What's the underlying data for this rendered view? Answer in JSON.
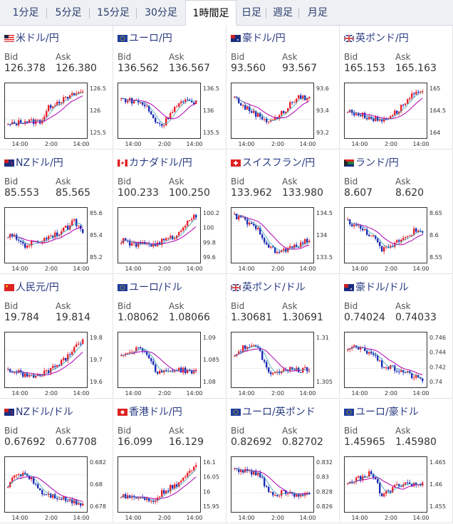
{
  "tabs": [
    {
      "label": "1分足",
      "active": false
    },
    {
      "label": "5分足",
      "active": false
    },
    {
      "label": "15分足",
      "active": false
    },
    {
      "label": "30分足",
      "active": false
    },
    {
      "label": "1時間足",
      "active": true
    },
    {
      "label": "日足",
      "active": false
    },
    {
      "label": "週足",
      "active": false
    },
    {
      "label": "月足",
      "active": false
    }
  ],
  "bid_label": "Bid",
  "ask_label": "Ask",
  "x_ticks": [
    "14:00",
    "2:00",
    "14:00"
  ],
  "colors": {
    "up": "#e8202a",
    "down": "#1a2bb5",
    "ma_long": "#b000b0",
    "ma_short": "#3aa0b8",
    "title": "#2a3c84"
  },
  "pairs": [
    {
      "name": "米ドル/円",
      "flag": "us-jp",
      "bid": "126.378",
      "ask": "126.380",
      "chart_data": {
        "type": "candlestick",
        "y_ticks": [
          "126.5",
          "126",
          "125.5"
        ],
        "ylim": [
          125.15,
          126.65
        ],
        "trend": [
          0.2,
          0.25,
          0.3,
          0.28,
          0.3,
          0.6,
          0.7,
          0.75,
          0.85,
          0.9
        ]
      }
    },
    {
      "name": "ユーロ/円",
      "flag": "eu-jp",
      "bid": "136.562",
      "ask": "136.567",
      "chart_data": {
        "type": "candlestick",
        "y_ticks": [
          "136.5",
          "136",
          "135.5"
        ],
        "ylim": [
          135.4,
          136.9
        ],
        "trend": [
          0.75,
          0.72,
          0.7,
          0.6,
          0.3,
          0.2,
          0.5,
          0.65,
          0.7,
          0.7
        ]
      }
    },
    {
      "name": "豪ドル/円",
      "flag": "au-jp",
      "bid": "93.560",
      "ask": "93.567",
      "chart_data": {
        "type": "candlestick",
        "y_ticks": [
          "93.6",
          "93.4",
          "93.2"
        ],
        "ylim": [
          93.1,
          93.7
        ],
        "trend": [
          0.8,
          0.6,
          0.5,
          0.4,
          0.3,
          0.35,
          0.5,
          0.7,
          0.8,
          0.75
        ]
      }
    },
    {
      "name": "英ポンド/円",
      "flag": "gb-jp",
      "bid": "165.153",
      "ask": "165.163",
      "chart_data": {
        "type": "candlestick",
        "y_ticks": [
          "165",
          "164.5",
          "164"
        ],
        "ylim": [
          163.9,
          165.3
        ],
        "trend": [
          0.5,
          0.45,
          0.4,
          0.35,
          0.3,
          0.4,
          0.5,
          0.7,
          0.85,
          0.85
        ]
      }
    },
    {
      "name": "NZドル/円",
      "flag": "nz-jp",
      "bid": "85.553",
      "ask": "85.565",
      "chart_data": {
        "type": "candlestick",
        "y_ticks": [
          "85.6",
          "85.4",
          "85.2"
        ],
        "ylim": [
          85.15,
          85.75
        ],
        "trend": [
          0.5,
          0.45,
          0.3,
          0.35,
          0.4,
          0.5,
          0.55,
          0.65,
          0.8,
          0.6
        ]
      }
    },
    {
      "name": "カナダドル/円",
      "flag": "ca-jp",
      "bid": "100.233",
      "ask": "100.250",
      "chart_data": {
        "type": "candlestick",
        "y_ticks": [
          "100.2",
          "100",
          "99.8",
          "99.6"
        ],
        "ylim": [
          99.5,
          100.3
        ],
        "trend": [
          0.4,
          0.35,
          0.3,
          0.35,
          0.3,
          0.4,
          0.45,
          0.55,
          0.85,
          0.9
        ]
      }
    },
    {
      "name": "スイスフラン/円",
      "flag": "ch-jp",
      "bid": "133.962",
      "ask": "133.980",
      "chart_data": {
        "type": "candlestick",
        "y_ticks": [
          "134.5",
          "134",
          "133.5"
        ],
        "ylim": [
          133.4,
          134.7
        ],
        "trend": [
          0.9,
          0.85,
          0.7,
          0.6,
          0.3,
          0.15,
          0.2,
          0.25,
          0.35,
          0.4
        ]
      }
    },
    {
      "name": "ランド/円",
      "flag": "za-jp",
      "bid": "8.607",
      "ask": "8.620",
      "chart_data": {
        "type": "candlestick",
        "y_ticks": [
          "8.65",
          "8.6",
          "8.55"
        ],
        "ylim": [
          8.52,
          8.67
        ],
        "trend": [
          0.8,
          0.7,
          0.6,
          0.5,
          0.2,
          0.25,
          0.4,
          0.5,
          0.6,
          0.55
        ]
      }
    },
    {
      "name": "人民元/円",
      "flag": "cn-jp",
      "bid": "19.784",
      "ask": "19.814",
      "chart_data": {
        "type": "candlestick",
        "y_ticks": [
          "19.8",
          "19.7",
          "19.6"
        ],
        "ylim": [
          19.58,
          19.83
        ],
        "trend": [
          0.3,
          0.25,
          0.2,
          0.15,
          0.2,
          0.3,
          0.4,
          0.55,
          0.8,
          0.9
        ]
      }
    },
    {
      "name": "ユーロ/ドル",
      "flag": "eu-us",
      "bid": "1.08062",
      "ask": "1.08066",
      "chart_data": {
        "type": "candlestick",
        "y_ticks": [
          "1.09",
          "1.085",
          "1.08"
        ],
        "ylim": [
          1.076,
          1.093
        ],
        "trend": [
          0.6,
          0.7,
          0.75,
          0.7,
          0.3,
          0.25,
          0.3,
          0.3,
          0.28,
          0.25
        ]
      }
    },
    {
      "name": "英ポンド/ドル",
      "flag": "gb-us",
      "bid": "1.30681",
      "ask": "1.30691",
      "chart_data": {
        "type": "candlestick",
        "y_ticks": [
          "1.31",
          "1.305"
        ],
        "ylim": [
          1.302,
          1.315
        ],
        "trend": [
          0.6,
          0.75,
          0.8,
          0.7,
          0.3,
          0.2,
          0.35,
          0.3,
          0.3,
          0.32
        ]
      }
    },
    {
      "name": "豪ドル/ドル",
      "flag": "au-us",
      "bid": "0.74024",
      "ask": "0.74033",
      "chart_data": {
        "type": "candlestick",
        "y_ticks": [
          "0.746",
          "0.744",
          "0.742",
          "0.74"
        ],
        "ylim": [
          0.7395,
          0.7475
        ],
        "trend": [
          0.75,
          0.75,
          0.7,
          0.65,
          0.4,
          0.35,
          0.3,
          0.25,
          0.15,
          0.1
        ]
      }
    },
    {
      "name": "NZドル/ドル",
      "flag": "nz-us",
      "bid": "0.67692",
      "ask": "0.67708",
      "chart_data": {
        "type": "candlestick",
        "y_ticks": [
          "0.682",
          "0.68",
          "0.678"
        ],
        "ylim": [
          0.6765,
          0.6835
        ],
        "trend": [
          0.5,
          0.7,
          0.75,
          0.6,
          0.35,
          0.3,
          0.25,
          0.2,
          0.15,
          0.12
        ]
      }
    },
    {
      "name": "香港ドル/円",
      "flag": "hk-jp",
      "bid": "16.099",
      "ask": "16.129",
      "chart_data": {
        "type": "candlestick",
        "y_ticks": [
          "16.1",
          "16.05",
          "16",
          "15.95"
        ],
        "ylim": [
          15.93,
          16.12
        ],
        "trend": [
          0.3,
          0.25,
          0.25,
          0.2,
          0.2,
          0.35,
          0.45,
          0.5,
          0.8,
          0.9
        ]
      }
    },
    {
      "name": "ユーロ/英ポンド",
      "flag": "eu-gb",
      "bid": "0.82692",
      "ask": "0.82702",
      "chart_data": {
        "type": "candlestick",
        "y_ticks": [
          "0.832",
          "0.83",
          "0.828",
          "0.826"
        ],
        "ylim": [
          0.8252,
          0.8325
        ],
        "trend": [
          0.8,
          0.8,
          0.75,
          0.7,
          0.4,
          0.3,
          0.35,
          0.3,
          0.3,
          0.28
        ]
      }
    },
    {
      "name": "ユーロ/豪ドル",
      "flag": "eu-au",
      "bid": "1.45965",
      "ask": "1.45980",
      "chart_data": {
        "type": "candlestick",
        "y_ticks": [
          "1.465",
          "1.46",
          "1.455"
        ],
        "ylim": [
          1.452,
          1.467
        ],
        "trend": [
          0.5,
          0.6,
          0.7,
          0.75,
          0.3,
          0.35,
          0.5,
          0.55,
          0.5,
          0.5
        ]
      }
    }
  ]
}
